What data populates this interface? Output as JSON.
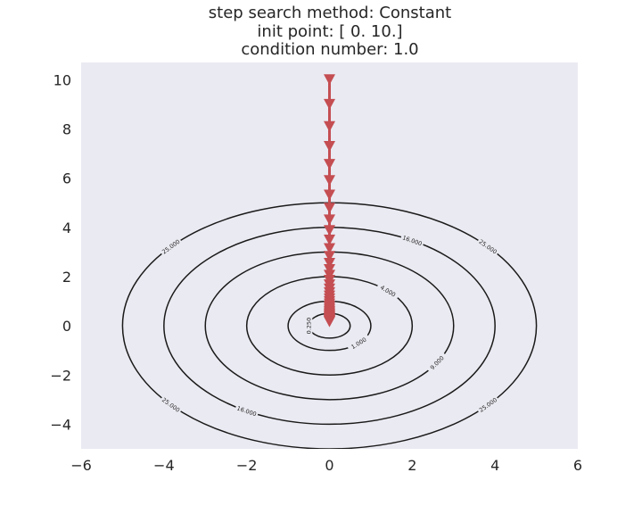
{
  "chart_data": {
    "type": "contour",
    "title_lines": [
      "step search method: Constant",
      "init point: [ 0. 10.]",
      "condition number: 1.0"
    ],
    "xlim": [
      -6,
      6
    ],
    "ylim": [
      -5,
      10.7
    ],
    "x_ticks": [
      -6,
      -4,
      -2,
      0,
      2,
      4,
      6
    ],
    "x_tick_labels": [
      "−6",
      "−4",
      "−2",
      "0",
      "2",
      "4",
      "6"
    ],
    "y_ticks": [
      -4,
      -2,
      0,
      2,
      4,
      6,
      8,
      10
    ],
    "y_tick_labels": [
      "−4",
      "−2",
      "0",
      "2",
      "4",
      "6",
      "8",
      "10"
    ],
    "grid": false,
    "background": "#eaeaf2",
    "contour_color": "#1a1a1a",
    "path_color": "#c44e52",
    "contour_levels": [
      {
        "level": 0.25,
        "label": "0.250"
      },
      {
        "level": 1.0,
        "label": "1.000"
      },
      {
        "level": 4.0,
        "label": "4.000"
      },
      {
        "level": 9.0,
        "label": "9.000"
      },
      {
        "level": 16.0,
        "label": "16.000"
      },
      {
        "level": 25.0,
        "label": "25.000"
      }
    ],
    "path": {
      "marker": "triangle-down",
      "x": [
        0,
        0,
        0,
        0,
        0,
        0,
        0,
        0,
        0,
        0,
        0,
        0,
        0,
        0,
        0,
        0,
        0,
        0,
        0,
        0,
        0,
        0,
        0,
        0,
        0,
        0,
        0,
        0,
        0,
        0,
        0,
        0,
        0,
        0,
        0,
        0,
        0,
        0,
        0,
        0
      ],
      "y": [
        10.0,
        9.0,
        8.1,
        7.29,
        6.561,
        5.905,
        5.314,
        4.783,
        4.305,
        3.874,
        3.487,
        3.138,
        2.824,
        2.542,
        2.288,
        2.059,
        1.853,
        1.668,
        1.501,
        1.351,
        1.216,
        1.094,
        0.985,
        0.886,
        0.798,
        0.718,
        0.646,
        0.581,
        0.523,
        0.471,
        0.424,
        0.382,
        0.343,
        0.309,
        0.278,
        0.25,
        0.225,
        0.203,
        0.182,
        0.164
      ]
    }
  }
}
